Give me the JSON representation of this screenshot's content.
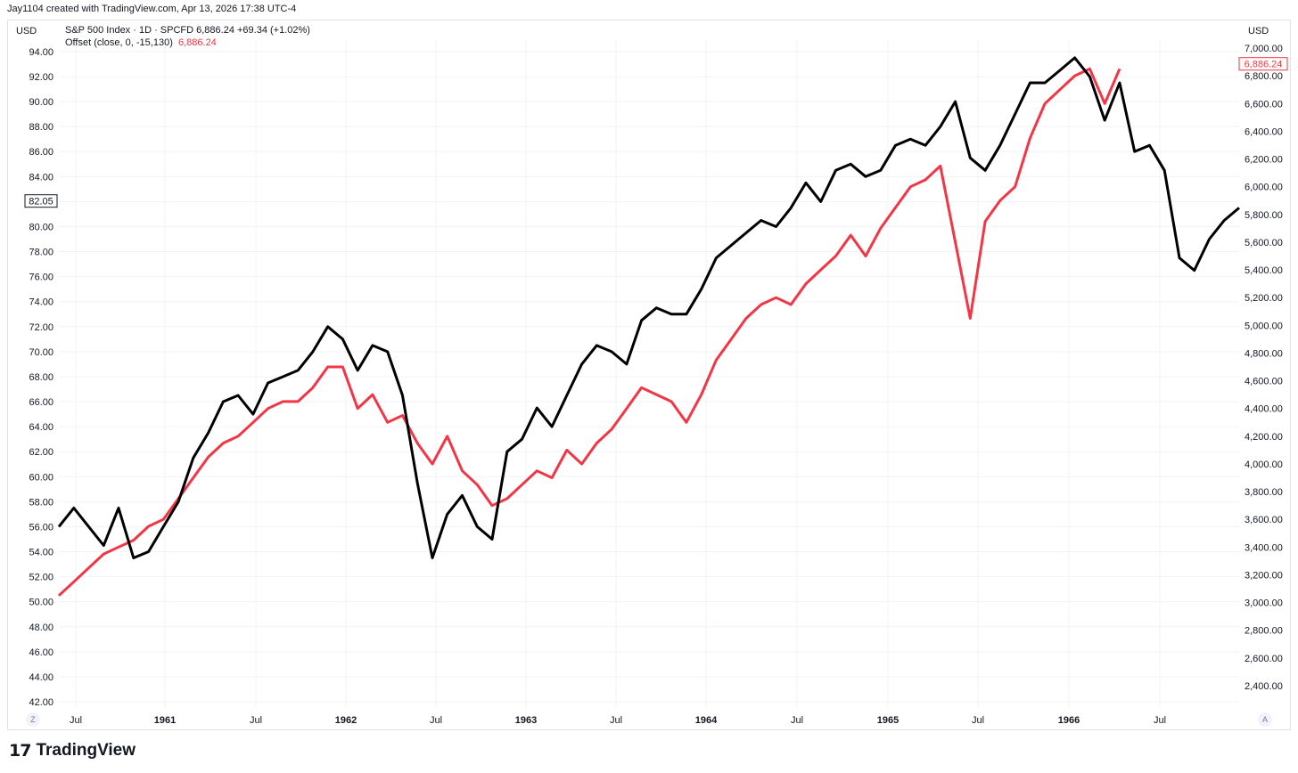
{
  "credit": "Jay1104 created with TradingView.com, Apr 13, 2026 17:38 UTC-4",
  "currency_left": "USD",
  "currency_right": "USD",
  "legend": {
    "series1": "S&P 500 Index · 1D · SPCFD  6,886.24  +69.34 (+1.02%)",
    "series2_label": "Offset (close, 0, -15,130)",
    "series2_value": "6,886.24"
  },
  "buttons": {
    "left": "Z",
    "right": "A"
  },
  "footer": {
    "logo_mark": "17",
    "brand": "TradingView"
  },
  "colors": {
    "black_series": "#000000",
    "red_series": "#f23645",
    "grid": "#f0f3fa"
  },
  "chart_data": {
    "type": "line",
    "x_ticks": [
      "Jul",
      "1961",
      "Jul",
      "1962",
      "Jul",
      "1963",
      "Jul",
      "1964",
      "Jul",
      "1965",
      "Jul",
      "1966",
      "Jul"
    ],
    "x_ticks_bold": [
      false,
      true,
      false,
      true,
      false,
      true,
      false,
      true,
      false,
      true,
      false,
      true,
      false
    ],
    "y_left": {
      "ticks": [
        42,
        44,
        46,
        48,
        50,
        52,
        54,
        56,
        58,
        60,
        62,
        64,
        66,
        68,
        70,
        72,
        74,
        76,
        78,
        80,
        82,
        84,
        86,
        88,
        90,
        92,
        94
      ],
      "labels": [
        "42.00",
        "44.00",
        "46.00",
        "48.00",
        "50.00",
        "52.00",
        "54.00",
        "56.00",
        "58.00",
        "60.00",
        "62.00",
        "64.00",
        "66.00",
        "68.00",
        "70.00",
        "72.00",
        "74.00",
        "76.00",
        "78.00",
        "80.00",
        "82.00",
        "84.00",
        "86.00",
        "88.00",
        "90.00",
        "92.00",
        "94.00"
      ],
      "current_label": "82.05",
      "current_value": 82.05
    },
    "y_right": {
      "ticks": [
        2400,
        2600,
        2800,
        3000,
        3200,
        3400,
        3600,
        3800,
        4000,
        4200,
        4400,
        4600,
        4800,
        5000,
        5200,
        5400,
        5600,
        5800,
        6000,
        6200,
        6400,
        6600,
        6800,
        7000
      ],
      "labels": [
        "2,400.00",
        "2,600.00",
        "2,800.00",
        "3,000.00",
        "3,200.00",
        "3,400.00",
        "3,600.00",
        "3,800.00",
        "4,000.00",
        "4,200.00",
        "4,400.00",
        "4,600.00",
        "4,800.00",
        "5,000.00",
        "5,200.00",
        "5,400.00",
        "5,600.00",
        "5,800.00",
        "6,000.00",
        "6,200.00",
        "6,400.00",
        "6,600.00",
        "6,800.00",
        "7,000.00"
      ],
      "current_label": "6,886.24",
      "current_value": 6886.24
    },
    "series": [
      {
        "name": "S&P 500 Index",
        "axis": "left",
        "x": [
          "1960-05",
          "1960-06",
          "1960-07",
          "1960-08",
          "1960-09",
          "1960-10",
          "1960-11",
          "1960-12",
          "1961-01",
          "1961-02",
          "1961-03",
          "1961-04",
          "1961-05",
          "1961-06",
          "1961-07",
          "1961-08",
          "1961-09",
          "1961-10",
          "1961-11",
          "1961-12",
          "1962-01",
          "1962-02",
          "1962-03",
          "1962-04",
          "1962-05",
          "1962-06",
          "1962-07",
          "1962-08",
          "1962-09",
          "1962-10",
          "1962-11",
          "1962-12",
          "1963-01",
          "1963-02",
          "1963-03",
          "1963-04",
          "1963-05",
          "1963-06",
          "1963-07",
          "1963-08",
          "1963-09",
          "1963-10",
          "1963-11",
          "1963-12",
          "1964-01",
          "1964-02",
          "1964-03",
          "1964-04",
          "1964-05",
          "1964-06",
          "1964-07",
          "1964-08",
          "1964-09",
          "1964-10",
          "1964-11",
          "1964-12",
          "1965-01",
          "1965-02",
          "1965-03",
          "1965-04",
          "1965-05",
          "1965-06",
          "1965-07",
          "1965-08",
          "1965-09",
          "1965-10",
          "1965-11",
          "1965-12",
          "1966-01",
          "1966-02",
          "1966-03",
          "1966-04",
          "1966-05",
          "1966-06",
          "1966-07",
          "1966-08",
          "1966-09",
          "1966-10",
          "1966-11",
          "1966-12"
        ],
        "values": [
          56.0,
          57.5,
          56.0,
          54.5,
          57.5,
          53.5,
          54.0,
          56.0,
          58.0,
          61.5,
          63.5,
          66.0,
          66.5,
          65.0,
          67.5,
          68.0,
          68.5,
          70.0,
          72.0,
          71.0,
          68.5,
          70.5,
          70.0,
          66.5,
          59.5,
          53.5,
          57.0,
          58.5,
          56.0,
          55.0,
          62.0,
          63.0,
          65.5,
          64.0,
          66.5,
          69.0,
          70.5,
          70.0,
          69.0,
          72.5,
          73.5,
          73.0,
          73.0,
          75.0,
          77.5,
          78.5,
          79.5,
          80.5,
          80.0,
          81.5,
          83.5,
          82.0,
          84.5,
          85.0,
          84.0,
          84.5,
          86.5,
          87.0,
          86.5,
          88.0,
          90.0,
          85.5,
          84.5,
          86.5,
          89.0,
          91.5,
          91.5,
          92.5,
          93.5,
          92.0,
          88.5,
          91.5,
          86.0,
          86.5,
          84.5,
          77.5,
          76.5,
          79.0,
          80.5,
          81.5
        ]
      },
      {
        "name": "Offset (close, 0, -15,130)",
        "axis": "right",
        "x": [
          "1960-05",
          "1960-06",
          "1960-07",
          "1960-08",
          "1960-09",
          "1960-10",
          "1960-11",
          "1960-12",
          "1961-01",
          "1961-02",
          "1961-03",
          "1961-04",
          "1961-05",
          "1961-06",
          "1961-07",
          "1961-08",
          "1961-09",
          "1961-10",
          "1961-11",
          "1961-12",
          "1962-01",
          "1962-02",
          "1962-03",
          "1962-04",
          "1962-05",
          "1962-06",
          "1962-07",
          "1962-08",
          "1962-09",
          "1962-10",
          "1962-11",
          "1962-12",
          "1963-01",
          "1963-02",
          "1963-03",
          "1963-04",
          "1963-05",
          "1963-06",
          "1963-07",
          "1963-08",
          "1963-09",
          "1963-10",
          "1963-11",
          "1963-12",
          "1964-01",
          "1964-02",
          "1964-03",
          "1964-04",
          "1964-05",
          "1964-06",
          "1964-07",
          "1964-08",
          "1964-09",
          "1964-10",
          "1964-11",
          "1964-12",
          "1965-01",
          "1965-02",
          "1965-03",
          "1965-04",
          "1965-05",
          "1965-06",
          "1965-07",
          "1965-08",
          "1965-09",
          "1965-10",
          "1965-11",
          "1965-12",
          "1966-01",
          "1966-02",
          "1966-03",
          "1966-04"
        ],
        "values": [
          3050,
          3150,
          3250,
          3350,
          3400,
          3450,
          3550,
          3600,
          3750,
          3900,
          4050,
          4150,
          4200,
          4300,
          4400,
          4450,
          4450,
          4550,
          4700,
          4700,
          4400,
          4500,
          4300,
          4350,
          4150,
          4000,
          4200,
          3950,
          3850,
          3700,
          3750,
          3850,
          3950,
          3900,
          4100,
          4000,
          4150,
          4250,
          4400,
          4550,
          4500,
          4450,
          4300,
          4500,
          4750,
          4900,
          5050,
          5150,
          5200,
          5150,
          5300,
          5400,
          5500,
          5650,
          5500,
          5700,
          5850,
          6000,
          6050,
          6150,
          5600,
          5050,
          5750,
          5900,
          6000,
          6350,
          6600,
          6700,
          6800,
          6850,
          6600,
          6850
        ]
      }
    ]
  }
}
